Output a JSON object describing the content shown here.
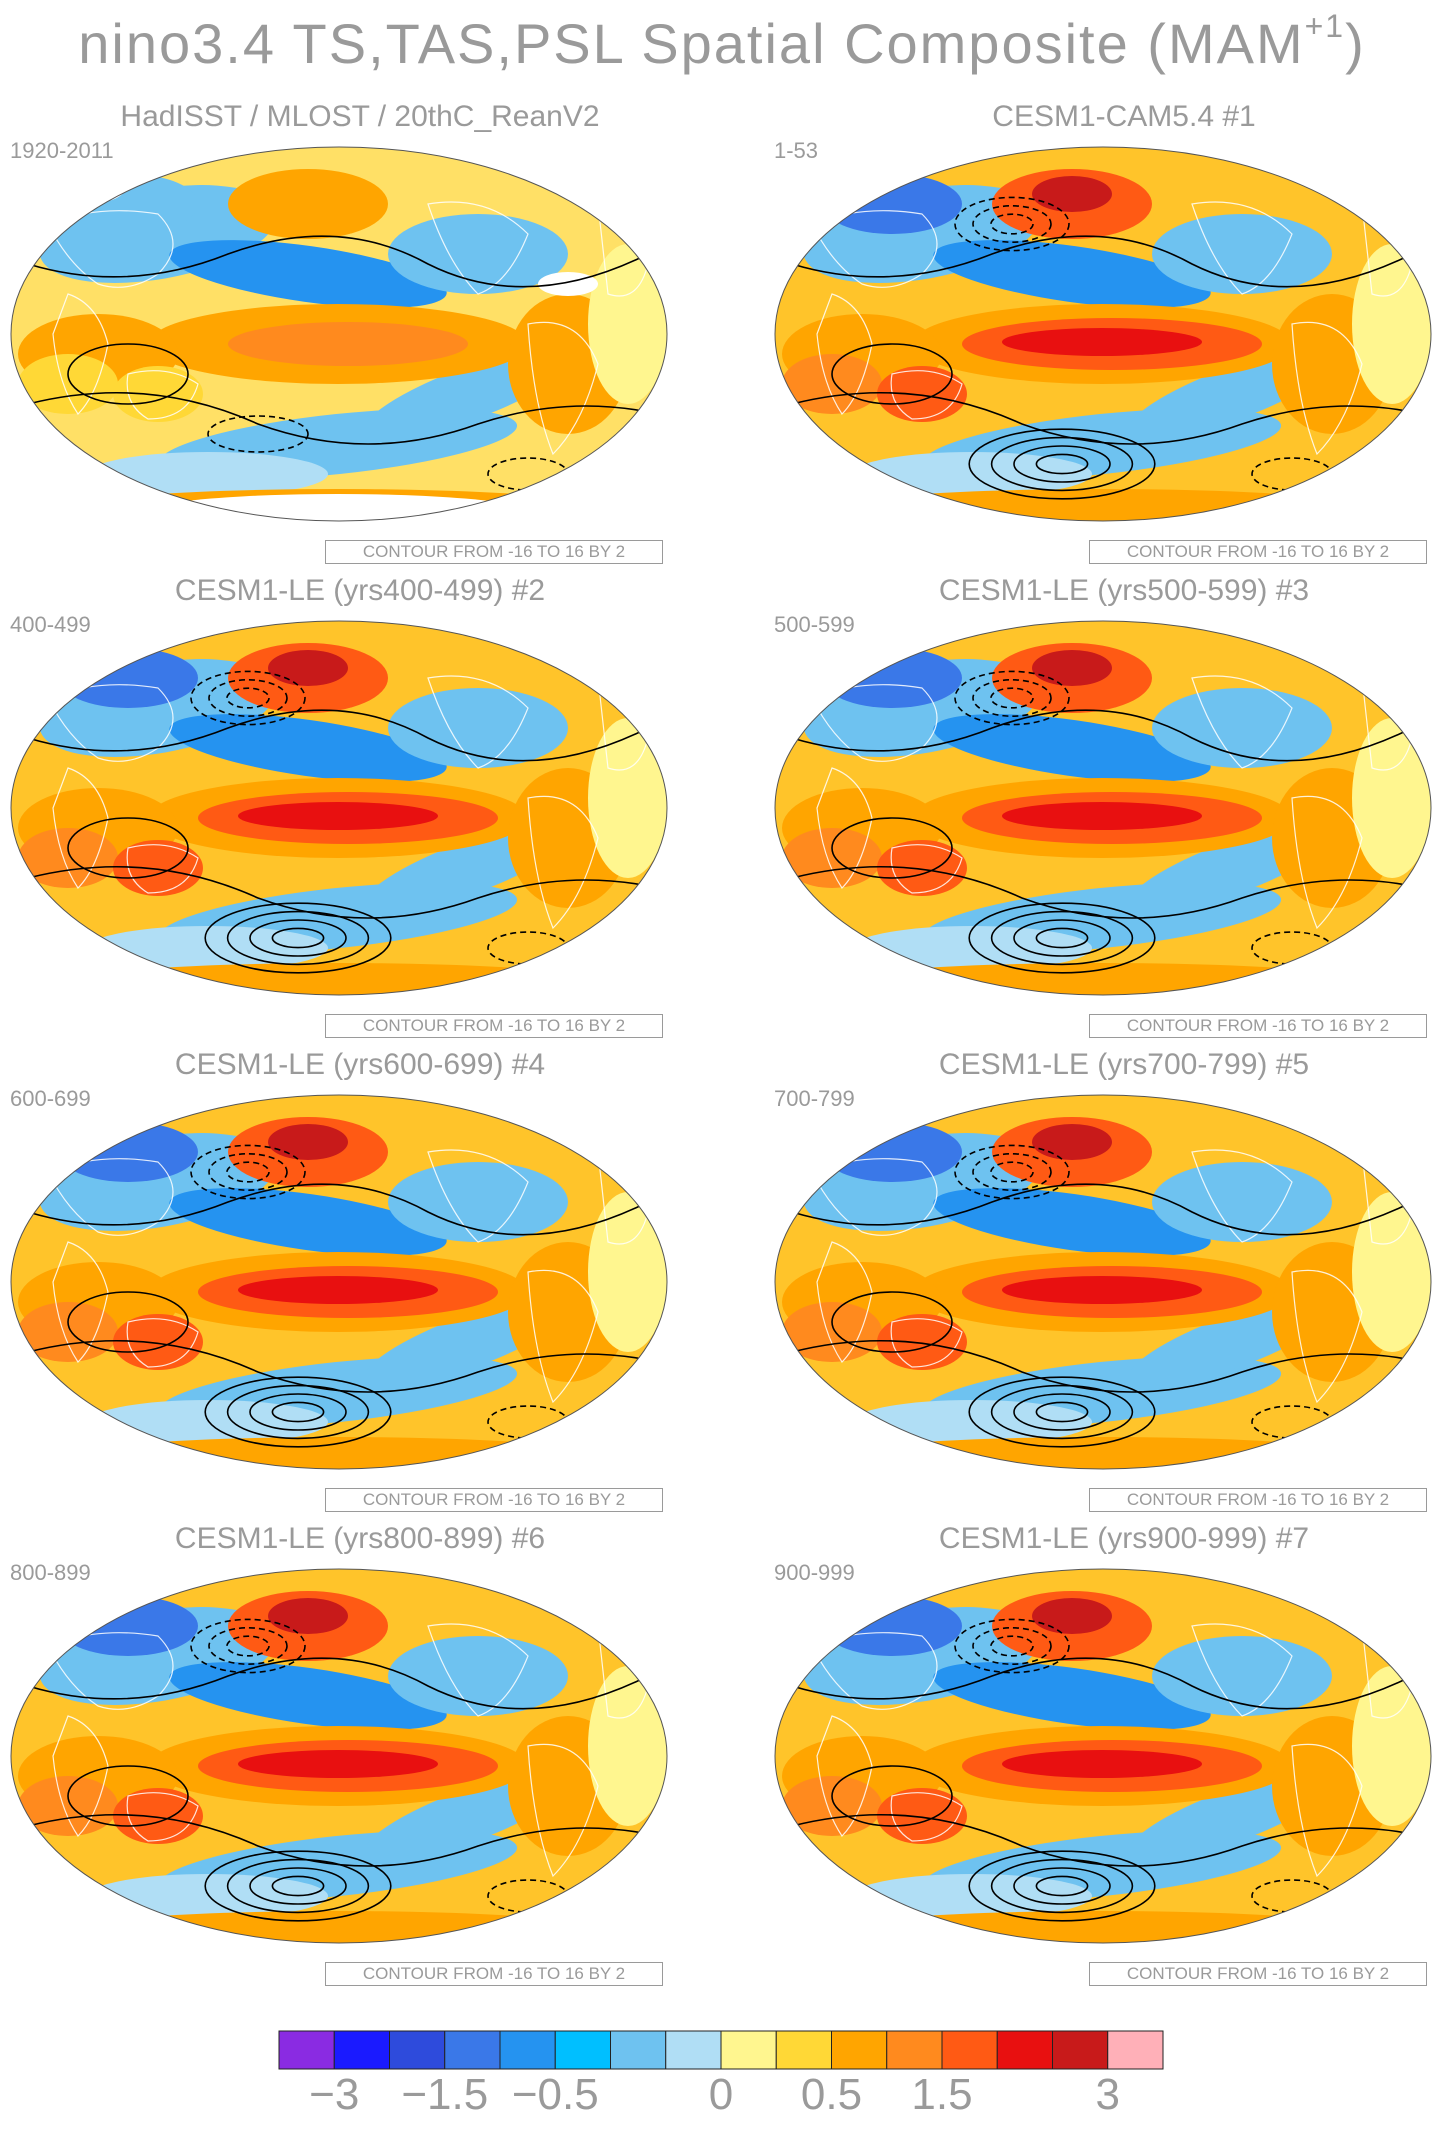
{
  "title": {
    "main": "nino3.4 TS,TAS,PSL Spatial Composite (MAM",
    "superscript": "+1",
    "close": ")"
  },
  "panels": [
    {
      "title": "HadISST / MLOST / 20thC_ReanV2",
      "range": "1920-2011",
      "contour": "CONTOUR FROM -16 TO 16 BY 2",
      "style": "obs"
    },
    {
      "title": "CESM1-CAM5.4          #1",
      "range": "1-53",
      "contour": "CONTOUR FROM -16 TO 16 BY 2",
      "style": "model"
    },
    {
      "title": "CESM1-LE (yrs400-499) #2",
      "range": "400-499",
      "contour": "CONTOUR FROM -16 TO 16 BY 2",
      "style": "model"
    },
    {
      "title": "CESM1-LE (yrs500-599) #3",
      "range": "500-599",
      "contour": "CONTOUR FROM -16 TO 16 BY 2",
      "style": "model"
    },
    {
      "title": "CESM1-LE (yrs600-699) #4",
      "range": "600-699",
      "contour": "CONTOUR FROM -16 TO 16 BY 2",
      "style": "model"
    },
    {
      "title": "CESM1-LE (yrs700-799) #5",
      "range": "700-799",
      "contour": "CONTOUR FROM -16 TO 16 BY 2",
      "style": "model"
    },
    {
      "title": "CESM1-LE (yrs800-899) #6",
      "range": "800-899",
      "contour": "CONTOUR FROM -16 TO 16 BY 2",
      "style": "model"
    },
    {
      "title": "CESM1-LE (yrs900-999) #7",
      "range": "900-999",
      "contour": "CONTOUR FROM -16 TO 16 BY 2",
      "style": "model"
    }
  ],
  "colorbar": {
    "colors": [
      "#8a2be2",
      "#1a1aff",
      "#2e4bdc",
      "#3a78e8",
      "#2593f0",
      "#00bfff",
      "#6ec2f0",
      "#b0def5",
      "#fff68f",
      "#ffd836",
      "#ffa500",
      "#ff8a1e",
      "#ff5a14",
      "#e81010",
      "#c81a1a",
      "#ffb0b8"
    ],
    "labels": [
      "−3",
      "−1.5",
      "−0.5",
      "0",
      "0.5",
      "1.5",
      "3"
    ],
    "label_positions": [
      1,
      3,
      5,
      8,
      10,
      12,
      15
    ]
  }
}
